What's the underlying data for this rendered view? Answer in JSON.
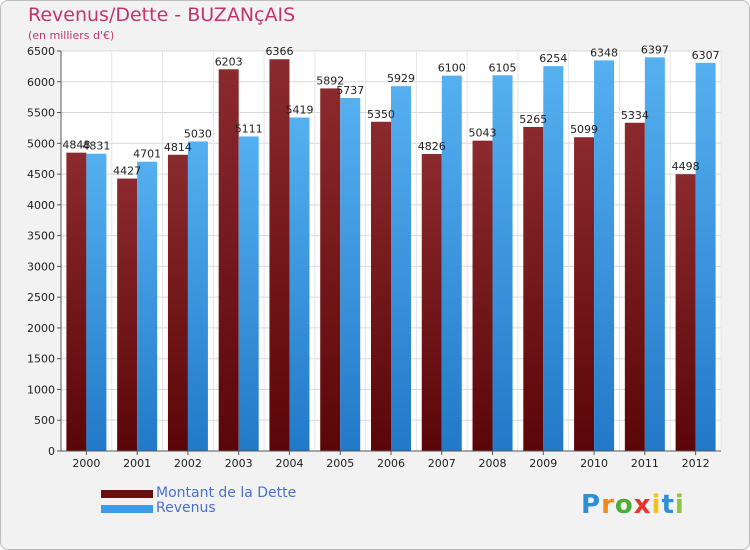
{
  "chart_data": {
    "type": "bar",
    "title": "Revenus/Dette - BUZANçAIS",
    "subtitle": "(en milliers d'€)",
    "categories": [
      "2000",
      "2001",
      "2002",
      "2003",
      "2004",
      "2005",
      "2006",
      "2007",
      "2008",
      "2009",
      "2010",
      "2011",
      "2012"
    ],
    "series": [
      {
        "name": "Montant de la Dette",
        "color": "#7b1a1e",
        "values": [
          4848,
          4427,
          4814,
          6203,
          6366,
          5892,
          5350,
          4826,
          5043,
          5265,
          5099,
          5334,
          4498
        ]
      },
      {
        "name": "Revenus",
        "color": "#3d9be8",
        "values": [
          4831,
          4701,
          5030,
          5111,
          5419,
          5737,
          5929,
          6100,
          6105,
          6254,
          6348,
          6397,
          6307
        ]
      }
    ],
    "ylim": [
      0,
      6500
    ],
    "yticks": [
      0,
      500,
      1000,
      1500,
      2000,
      2500,
      3000,
      3500,
      4000,
      4500,
      5000,
      5500,
      6000,
      6500
    ],
    "grid": true,
    "legend": "bottom-left"
  },
  "logo": {
    "letters": [
      "P",
      "r",
      "o",
      "x",
      "i",
      "t",
      "i"
    ],
    "colors": [
      "#2f8fd6",
      "#f08a1c",
      "#4cae3a",
      "#e8322a",
      "#f6c21a",
      "#2f8fd6",
      "#8dc63f"
    ]
  }
}
